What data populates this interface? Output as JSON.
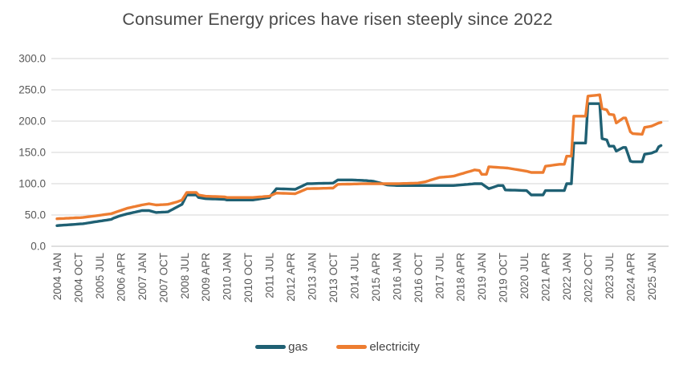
{
  "title": "Consumer Energy prices have risen steeply since 2022",
  "colors": {
    "gas_line": "#1F6073",
    "electricity_line": "#ED7D31",
    "gridline": "#D6D6D6",
    "axis_line": "#BFBFBF",
    "tick_text": "#595959",
    "title_text": "#4a4a4a"
  },
  "legend": {
    "items": [
      {
        "label": "gas",
        "color": "#1F6073"
      },
      {
        "label": "electricity",
        "color": "#ED7D31"
      }
    ]
  },
  "chart_data": {
    "type": "line",
    "title": "Consumer Energy prices have risen steeply since 2022",
    "xlabel": "",
    "ylabel": "",
    "x_unit": "month",
    "x_start": "2004-01",
    "x_end": "2025-05",
    "x_tick_interval_months": 9,
    "x_tick_labels": [
      "2004 JAN",
      "2004 OCT",
      "2005 JUL",
      "2006 APR",
      "2007 JAN",
      "2007 OCT",
      "2008 JUL",
      "2009 APR",
      "2010 JAN",
      "2010 OCT",
      "2011 JUL",
      "2012 APR",
      "2013 JAN",
      "2013 OCT",
      "2014 JUL",
      "2015 APR",
      "2016 JAN",
      "2016 OCT",
      "2017 JUL",
      "2018 APR",
      "2019 JAN",
      "2019 OCT",
      "2020 JUL",
      "2021 APR",
      "2022 JAN",
      "2022 OCT",
      "2023 JUL",
      "2024 APR",
      "2025 JAN"
    ],
    "ylim": [
      0,
      300
    ],
    "y_tick_labels": [
      "0.0",
      "50.0",
      "100.0",
      "150.0",
      "200.0",
      "250.0",
      "300.0"
    ],
    "grid": true,
    "legend_position": "bottom",
    "note": "Monthly index series; values read from chart as anchor points [YYYY-MM, value], linearly interpolated between anchors.",
    "series": [
      {
        "name": "gas",
        "color": "#1F6073",
        "anchor_points": [
          [
            "2004-01",
            33
          ],
          [
            "2004-12",
            36
          ],
          [
            "2005-12",
            43
          ],
          [
            "2006-01",
            45
          ],
          [
            "2006-04",
            49
          ],
          [
            "2006-07",
            52
          ],
          [
            "2007-01",
            57
          ],
          [
            "2007-04",
            57
          ],
          [
            "2007-07",
            54
          ],
          [
            "2007-12",
            55
          ],
          [
            "2008-04",
            63
          ],
          [
            "2008-06",
            67
          ],
          [
            "2008-08",
            82
          ],
          [
            "2008-12",
            82
          ],
          [
            "2009-01",
            78
          ],
          [
            "2009-04",
            76
          ],
          [
            "2009-12",
            75
          ],
          [
            "2010-01",
            74
          ],
          [
            "2010-12",
            74
          ],
          [
            "2011-07",
            78
          ],
          [
            "2011-10",
            92
          ],
          [
            "2012-06",
            91
          ],
          [
            "2012-11",
            100
          ],
          [
            "2013-10",
            101
          ],
          [
            "2013-12",
            106
          ],
          [
            "2014-06",
            106
          ],
          [
            "2014-12",
            105
          ],
          [
            "2015-03",
            104
          ],
          [
            "2015-06",
            101
          ],
          [
            "2015-09",
            98
          ],
          [
            "2016-01",
            97
          ],
          [
            "2018-01",
            97
          ],
          [
            "2018-10",
            100
          ],
          [
            "2019-01",
            100
          ],
          [
            "2019-04",
            92
          ],
          [
            "2019-08",
            97
          ],
          [
            "2019-10",
            97
          ],
          [
            "2019-11",
            90
          ],
          [
            "2020-08",
            89
          ],
          [
            "2020-10",
            82
          ],
          [
            "2021-03",
            82
          ],
          [
            "2021-04",
            89
          ],
          [
            "2021-12",
            89
          ],
          [
            "2022-01",
            100
          ],
          [
            "2022-03",
            100
          ],
          [
            "2022-04",
            165
          ],
          [
            "2022-09",
            165
          ],
          [
            "2022-10",
            228
          ],
          [
            "2023-03",
            228
          ],
          [
            "2023-04",
            172
          ],
          [
            "2023-06",
            170
          ],
          [
            "2023-07",
            160
          ],
          [
            "2023-09",
            160
          ],
          [
            "2023-10",
            152
          ],
          [
            "2024-01",
            158
          ],
          [
            "2024-02",
            158
          ],
          [
            "2024-04",
            136
          ],
          [
            "2024-05",
            135
          ],
          [
            "2024-09",
            135
          ],
          [
            "2024-10",
            147
          ],
          [
            "2025-01",
            149
          ],
          [
            "2025-03",
            152
          ],
          [
            "2025-04",
            159
          ],
          [
            "2025-05",
            161
          ]
        ]
      },
      {
        "name": "electricity",
        "color": "#ED7D31",
        "anchor_points": [
          [
            "2004-01",
            44
          ],
          [
            "2004-12",
            46
          ],
          [
            "2005-12",
            52
          ],
          [
            "2006-07",
            61
          ],
          [
            "2007-01",
            66
          ],
          [
            "2007-04",
            68
          ],
          [
            "2007-07",
            66
          ],
          [
            "2007-12",
            67
          ],
          [
            "2008-04",
            71
          ],
          [
            "2008-06",
            74
          ],
          [
            "2008-08",
            86
          ],
          [
            "2008-12",
            86
          ],
          [
            "2009-01",
            82
          ],
          [
            "2009-04",
            80
          ],
          [
            "2009-12",
            79
          ],
          [
            "2010-01",
            78
          ],
          [
            "2010-12",
            78
          ],
          [
            "2011-07",
            80
          ],
          [
            "2011-10",
            85
          ],
          [
            "2012-06",
            84
          ],
          [
            "2012-11",
            92
          ],
          [
            "2013-10",
            93
          ],
          [
            "2013-12",
            99
          ],
          [
            "2014-12",
            100
          ],
          [
            "2016-01",
            100
          ],
          [
            "2016-10",
            101
          ],
          [
            "2017-01",
            103
          ],
          [
            "2017-07",
            110
          ],
          [
            "2018-01",
            112
          ],
          [
            "2018-10",
            122
          ],
          [
            "2018-12",
            121
          ],
          [
            "2019-01",
            115
          ],
          [
            "2019-03",
            115
          ],
          [
            "2019-04",
            127
          ],
          [
            "2019-12",
            125
          ],
          [
            "2020-08",
            120
          ],
          [
            "2020-10",
            118
          ],
          [
            "2021-03",
            118
          ],
          [
            "2021-04",
            128
          ],
          [
            "2021-10",
            131
          ],
          [
            "2021-12",
            131
          ],
          [
            "2022-01",
            144
          ],
          [
            "2022-03",
            144
          ],
          [
            "2022-04",
            208
          ],
          [
            "2022-09",
            208
          ],
          [
            "2022-10",
            240
          ],
          [
            "2023-03",
            242
          ],
          [
            "2023-04",
            220
          ],
          [
            "2023-06",
            218
          ],
          [
            "2023-07",
            211
          ],
          [
            "2023-09",
            210
          ],
          [
            "2023-10",
            197
          ],
          [
            "2024-01",
            205
          ],
          [
            "2024-02",
            205
          ],
          [
            "2024-04",
            183
          ],
          [
            "2024-05",
            180
          ],
          [
            "2024-09",
            179
          ],
          [
            "2024-10",
            190
          ],
          [
            "2025-01",
            192
          ],
          [
            "2025-04",
            197
          ],
          [
            "2025-05",
            198
          ]
        ]
      }
    ]
  }
}
